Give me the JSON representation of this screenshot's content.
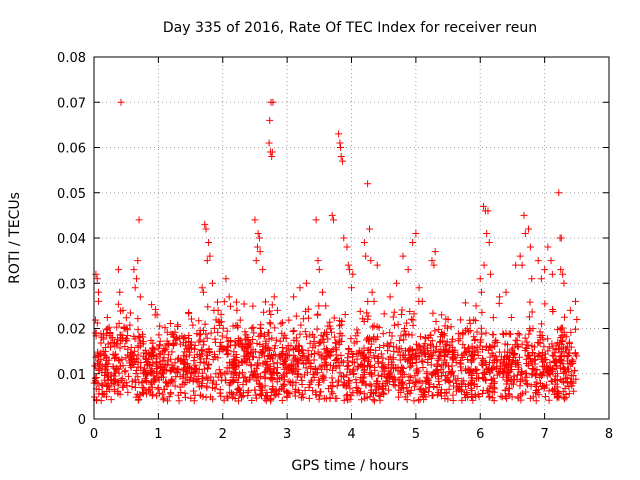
{
  "chart_data": {
    "type": "scatter",
    "title": "Day 335 of 2016, Rate Of TEC Index for receiver reun",
    "xlabel": "GPS time / hours",
    "ylabel": "ROTI / TECUs",
    "xlim": [
      0,
      8
    ],
    "ylim": [
      0,
      0.08
    ],
    "x_ticks": [
      0,
      1,
      2,
      3,
      4,
      5,
      6,
      7,
      8
    ],
    "x_tick_labels": [
      "0",
      "1",
      "2",
      "3",
      "4",
      "5",
      "6",
      "7",
      "8"
    ],
    "y_ticks": [
      0,
      0.01,
      0.02,
      0.03,
      0.04,
      0.05,
      0.06,
      0.07,
      0.08
    ],
    "y_tick_labels": [
      "0",
      "0.01",
      "0.02",
      "0.03",
      "0.04",
      "0.05",
      "0.06",
      "0.07",
      "0.08"
    ],
    "grid": true,
    "marker": "+",
    "series": [
      {
        "name": "ROTI",
        "color": "#ff0000",
        "points": [
          [
            0.03,
            0.032
          ],
          [
            0.05,
            0.031
          ],
          [
            0.07,
            0.028
          ],
          [
            0.07,
            0.026
          ],
          [
            0.02,
            0.019
          ],
          [
            0.06,
            0.014
          ],
          [
            0.42,
            0.07
          ],
          [
            0.38,
            0.033
          ],
          [
            0.4,
            0.028
          ],
          [
            0.45,
            0.024
          ],
          [
            0.7,
            0.044
          ],
          [
            0.68,
            0.035
          ],
          [
            0.62,
            0.033
          ],
          [
            0.66,
            0.031
          ],
          [
            0.64,
            0.029
          ],
          [
            0.72,
            0.027
          ],
          [
            0.95,
            0.023
          ],
          [
            0.98,
            0.023
          ],
          [
            1.72,
            0.043
          ],
          [
            1.74,
            0.042
          ],
          [
            1.78,
            0.039
          ],
          [
            1.8,
            0.036
          ],
          [
            1.76,
            0.035
          ],
          [
            1.68,
            0.029
          ],
          [
            1.7,
            0.028
          ],
          [
            1.84,
            0.03
          ],
          [
            2.05,
            0.031
          ],
          [
            2.1,
            0.027
          ],
          [
            2.5,
            0.044
          ],
          [
            2.55,
            0.041
          ],
          [
            2.57,
            0.04
          ],
          [
            2.54,
            0.038
          ],
          [
            2.58,
            0.037
          ],
          [
            2.52,
            0.035
          ],
          [
            2.62,
            0.033
          ],
          [
            2.75,
            0.07
          ],
          [
            2.78,
            0.07
          ],
          [
            2.73,
            0.066
          ],
          [
            2.72,
            0.061
          ],
          [
            2.74,
            0.059
          ],
          [
            2.76,
            0.058
          ],
          [
            2.77,
            0.059
          ],
          [
            2.8,
            0.027
          ],
          [
            2.85,
            0.024
          ],
          [
            3.1,
            0.027
          ],
          [
            3.2,
            0.029
          ],
          [
            3.3,
            0.03
          ],
          [
            3.45,
            0.044
          ],
          [
            3.48,
            0.035
          ],
          [
            3.5,
            0.033
          ],
          [
            3.55,
            0.028
          ],
          [
            3.6,
            0.025
          ],
          [
            3.7,
            0.045
          ],
          [
            3.72,
            0.044
          ],
          [
            3.8,
            0.063
          ],
          [
            3.82,
            0.061
          ],
          [
            3.83,
            0.06
          ],
          [
            3.84,
            0.058
          ],
          [
            3.86,
            0.057
          ],
          [
            3.88,
            0.04
          ],
          [
            3.93,
            0.038
          ],
          [
            3.95,
            0.034
          ],
          [
            3.97,
            0.033
          ],
          [
            4.0,
            0.029
          ],
          [
            4.02,
            0.032
          ],
          [
            4.2,
            0.039
          ],
          [
            4.22,
            0.036
          ],
          [
            4.25,
            0.052
          ],
          [
            4.28,
            0.042
          ],
          [
            4.3,
            0.035
          ],
          [
            4.32,
            0.028
          ],
          [
            4.35,
            0.026
          ],
          [
            4.4,
            0.034
          ],
          [
            4.6,
            0.027
          ],
          [
            4.7,
            0.03
          ],
          [
            4.8,
            0.036
          ],
          [
            4.88,
            0.033
          ],
          [
            4.95,
            0.039
          ],
          [
            5.0,
            0.041
          ],
          [
            5.05,
            0.029
          ],
          [
            5.1,
            0.026
          ],
          [
            5.25,
            0.035
          ],
          [
            5.28,
            0.034
          ],
          [
            5.3,
            0.037
          ],
          [
            5.4,
            0.023
          ],
          [
            5.5,
            0.022
          ],
          [
            6.0,
            0.031
          ],
          [
            6.05,
            0.047
          ],
          [
            6.08,
            0.046
          ],
          [
            6.12,
            0.046
          ],
          [
            6.1,
            0.041
          ],
          [
            6.14,
            0.039
          ],
          [
            6.06,
            0.034
          ],
          [
            6.16,
            0.032
          ],
          [
            6.02,
            0.028
          ],
          [
            6.3,
            0.027
          ],
          [
            6.4,
            0.028
          ],
          [
            6.55,
            0.034
          ],
          [
            6.62,
            0.036
          ],
          [
            6.65,
            0.034
          ],
          [
            6.68,
            0.045
          ],
          [
            6.7,
            0.041
          ],
          [
            6.75,
            0.042
          ],
          [
            6.78,
            0.038
          ],
          [
            6.8,
            0.031
          ],
          [
            6.9,
            0.035
          ],
          [
            6.95,
            0.031
          ],
          [
            7.0,
            0.033
          ],
          [
            7.05,
            0.038
          ],
          [
            7.1,
            0.035
          ],
          [
            7.12,
            0.032
          ],
          [
            7.22,
            0.05
          ],
          [
            7.24,
            0.04
          ],
          [
            7.26,
            0.04
          ],
          [
            7.25,
            0.033
          ],
          [
            7.28,
            0.032
          ],
          [
            7.3,
            0.03
          ],
          [
            7.4,
            0.024
          ],
          [
            7.48,
            0.026
          ],
          [
            7.5,
            0.022
          ]
        ],
        "dense_band": {
          "x_range": [
            0.0,
            7.5
          ],
          "y_center": 0.0115,
          "y_spread": 0.0045,
          "y_min": 0.004,
          "y_max": 0.026,
          "count": 2200
        }
      }
    ]
  }
}
